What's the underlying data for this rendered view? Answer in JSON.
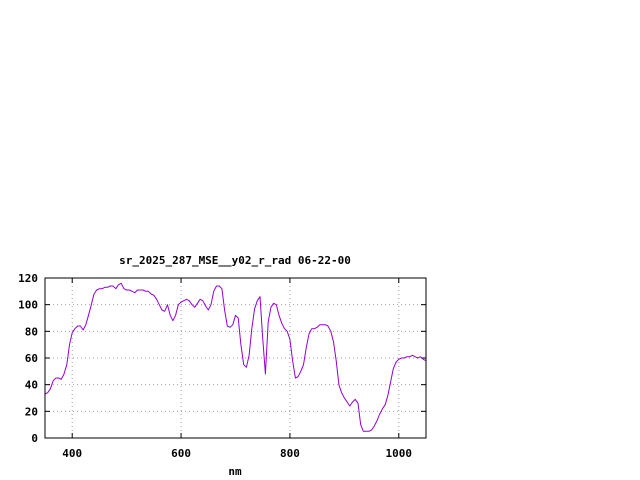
{
  "chart_data": {
    "type": "line",
    "title": "sr_2025_287_MSE__y02_r_rad 06-22-00",
    "xlabel": "nm",
    "ylabel": "",
    "xlim": [
      350,
      1050
    ],
    "ylim": [
      0,
      120
    ],
    "xticks": [
      400,
      600,
      800,
      1000
    ],
    "yticks": [
      0,
      20,
      40,
      60,
      80,
      100,
      120
    ],
    "grid": true,
    "colors": {
      "line": "#9400d3",
      "axis": "#000000",
      "grid": "#a0a0a0"
    },
    "series": [
      {
        "name": "",
        "x": [
          350,
          355,
          360,
          365,
          370,
          375,
          380,
          385,
          390,
          395,
          400,
          405,
          410,
          415,
          420,
          425,
          430,
          435,
          440,
          445,
          450,
          455,
          460,
          465,
          470,
          475,
          480,
          485,
          490,
          495,
          500,
          505,
          510,
          515,
          520,
          525,
          530,
          535,
          540,
          545,
          550,
          555,
          560,
          565,
          570,
          575,
          580,
          585,
          590,
          595,
          600,
          605,
          610,
          615,
          620,
          625,
          630,
          635,
          640,
          645,
          650,
          655,
          660,
          665,
          670,
          675,
          680,
          685,
          690,
          695,
          700,
          705,
          710,
          715,
          720,
          725,
          730,
          735,
          740,
          745,
          750,
          755,
          760,
          765,
          770,
          775,
          780,
          785,
          790,
          795,
          800,
          805,
          810,
          815,
          820,
          825,
          830,
          835,
          840,
          845,
          850,
          855,
          860,
          865,
          870,
          875,
          880,
          885,
          890,
          895,
          900,
          905,
          910,
          915,
          920,
          925,
          930,
          935,
          940,
          945,
          950,
          955,
          960,
          965,
          970,
          975,
          980,
          985,
          990,
          995,
          1000,
          1005,
          1010,
          1015,
          1020,
          1025,
          1030,
          1035,
          1040,
          1045,
          1050
        ],
        "y": [
          33,
          34,
          37,
          43,
          45,
          45,
          44,
          48,
          55,
          70,
          79,
          82,
          84,
          84,
          81,
          85,
          92,
          100,
          108,
          111,
          112,
          112,
          113,
          113,
          114,
          114,
          112,
          115,
          116,
          112,
          111,
          111,
          110,
          109,
          111,
          111,
          111,
          110,
          110,
          108,
          107,
          104,
          100,
          96,
          95,
          100,
          92,
          88,
          92,
          100,
          102,
          103,
          104,
          103,
          100,
          98,
          101,
          104,
          103,
          99,
          96,
          100,
          110,
          114,
          114,
          112,
          96,
          84,
          83,
          85,
          92,
          90,
          70,
          55,
          53,
          62,
          82,
          97,
          103,
          106,
          75,
          48,
          87,
          98,
          101,
          100,
          92,
          86,
          82,
          80,
          74,
          58,
          45,
          46,
          50,
          55,
          68,
          78,
          82,
          82,
          83,
          85,
          85,
          85,
          84,
          80,
          72,
          58,
          40,
          34,
          30,
          27,
          24,
          27,
          29,
          26,
          10,
          5,
          5,
          5,
          6,
          9,
          13,
          18,
          22,
          25,
          32,
          42,
          52,
          57,
          59,
          60,
          60,
          61,
          61,
          62,
          61,
          60,
          61,
          59,
          58
        ]
      }
    ]
  }
}
